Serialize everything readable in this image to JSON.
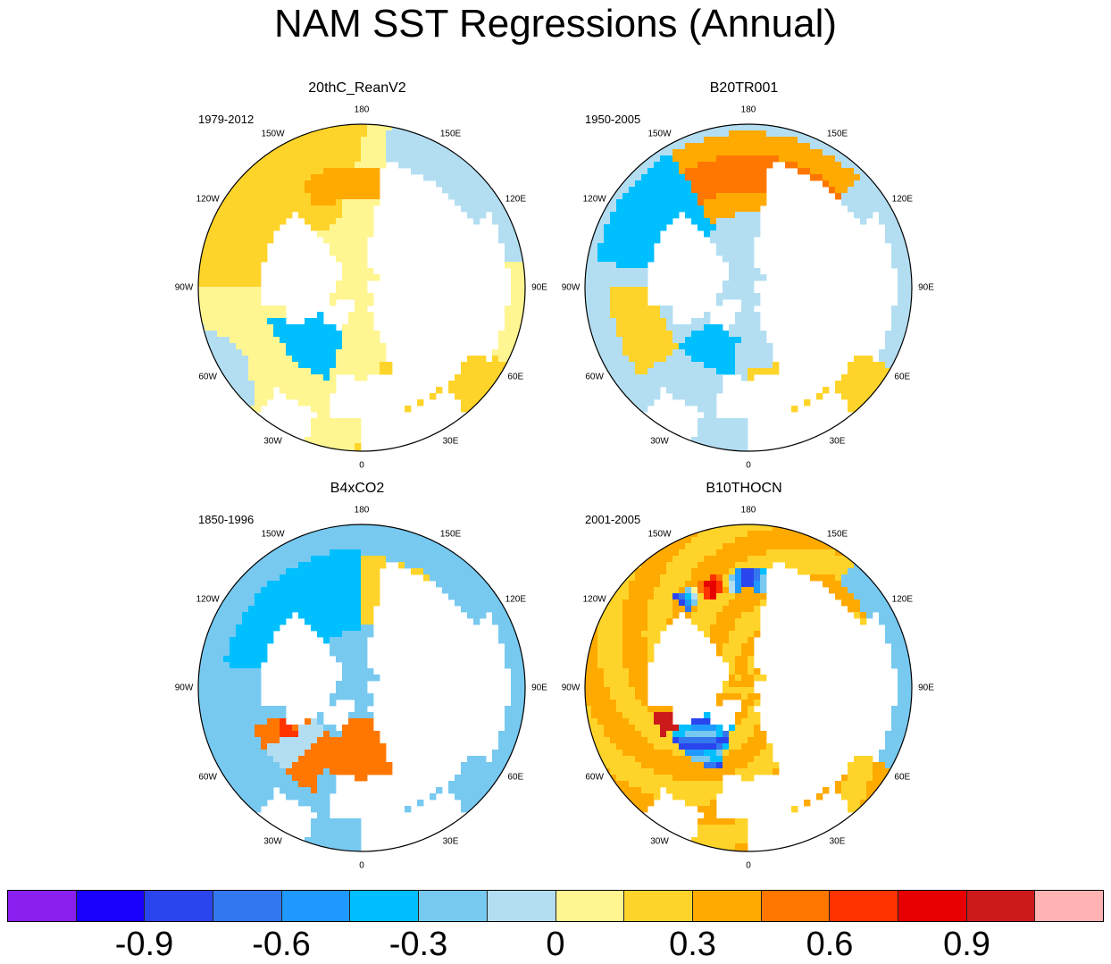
{
  "title": "NAM SST Regressions (Annual)",
  "chart_data": {
    "type": "heatmap",
    "projection": "north polar stereographic",
    "title": "NAM SST Regressions (Annual)",
    "longitude_labels": [
      "180",
      "150E",
      "120E",
      "90E",
      "60E",
      "30E",
      "0",
      "30W",
      "60W",
      "90W",
      "120W",
      "150W"
    ],
    "panels": [
      {
        "title": "20thC_ReanV2",
        "period": "1979-2012",
        "dominant_range": [
          -0.3,
          0.3
        ]
      },
      {
        "title": "B20TR001",
        "period": "1950-2005",
        "dominant_range": [
          -0.3,
          0.75
        ]
      },
      {
        "title": "B4xCO2",
        "period": "1850-1996",
        "dominant_range": [
          -0.45,
          0.6
        ]
      },
      {
        "title": "B10THOCN",
        "period": "2001-2005",
        "dominant_range": [
          -0.9,
          0.9
        ]
      }
    ],
    "colorbar": {
      "levels": [
        -1.05,
        -0.9,
        -0.75,
        -0.6,
        -0.45,
        -0.3,
        -0.15,
        0,
        0.15,
        0.3,
        0.45,
        0.6,
        0.75,
        0.9,
        1.05
      ],
      "tick_labels": [
        "-0.9",
        "-0.6",
        "-0.3",
        "0",
        "0.3",
        "0.6",
        "0.9"
      ],
      "tick_values": [
        -0.9,
        -0.6,
        -0.3,
        0,
        0.3,
        0.6,
        0.9
      ],
      "colors": [
        "#8a1ff0",
        "#1a00ff",
        "#2a44ee",
        "#3377ee",
        "#1f99ff",
        "#00bfff",
        "#77c9f0",
        "#b3def2",
        "#fff591",
        "#ffd42a",
        "#ffaa00",
        "#ff7700",
        "#ff3300",
        "#e60000",
        "#cc1a1a",
        "#ffb3b3"
      ]
    }
  }
}
